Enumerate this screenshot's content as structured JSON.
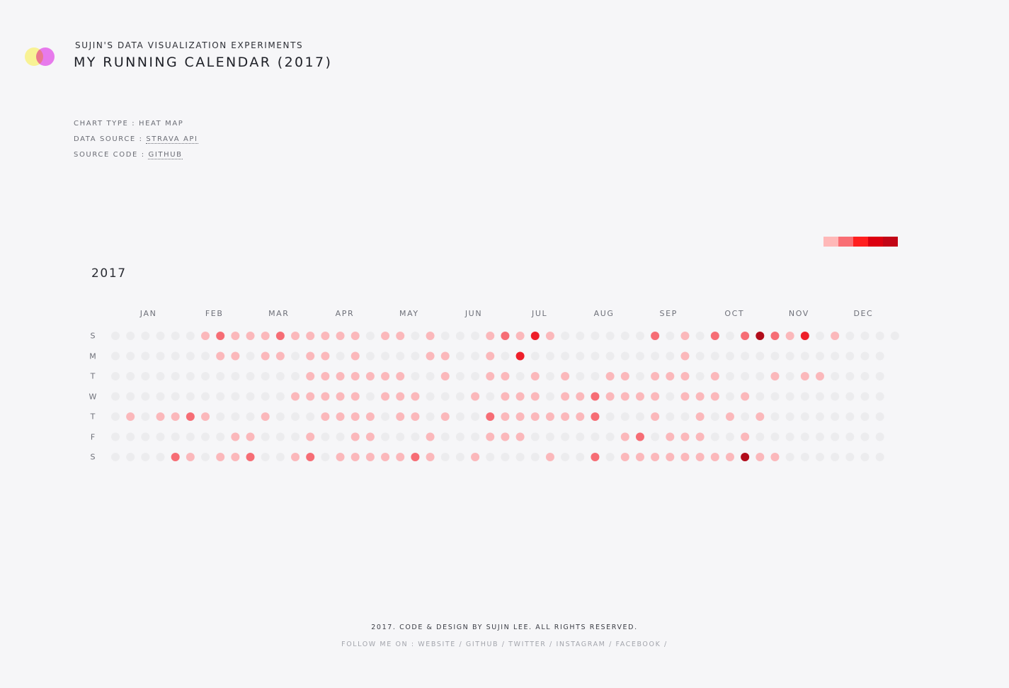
{
  "header": {
    "kicker": "SUJIN'S DATA VISUALIZATION EXPERIMENTS",
    "title": "MY RUNNING CALENDAR (2017)"
  },
  "meta": {
    "chart_type_label": "CHART TYPE : ",
    "chart_type_value": "HEAT MAP",
    "data_source_label": "DATA SOURCE : ",
    "data_source_link": "STRAVA API",
    "source_code_label": "SOURCE CODE : ",
    "source_code_link": "GITHUB"
  },
  "colors": {
    "background": "#f6f6f8",
    "logo_yellow": "#f7f18c",
    "logo_magenta": "#ee6cf2"
  },
  "chart_data": {
    "type": "heatmap",
    "title": "2017",
    "year": 2017,
    "months": [
      "JAN",
      "FEB",
      "MAR",
      "APR",
      "MAY",
      "JUN",
      "JUL",
      "AUG",
      "SEP",
      "OCT",
      "NOV",
      "DEC"
    ],
    "weekdays": [
      "S",
      "M",
      "T",
      "W",
      "T",
      "F",
      "S"
    ],
    "legend": {
      "position": "top-right",
      "colors": [
        "#ffb8b8",
        "#f96e74",
        "#ff1f1f",
        "#dc0010",
        "#c20516"
      ]
    },
    "level_colors": [
      "#ececee",
      "#fbb8bb",
      "#f66d75",
      "#ee1f2a",
      "#b10c1b"
    ],
    "levels": [
      [
        0,
        0,
        0,
        0,
        0,
        0,
        1,
        2,
        1,
        1,
        1,
        2,
        1,
        1,
        1,
        1,
        1,
        0,
        1,
        1,
        0,
        1,
        0,
        0,
        0,
        1,
        2,
        1,
        3,
        1,
        0,
        0,
        0,
        0,
        0,
        0,
        2,
        0,
        1,
        0,
        2,
        0,
        2,
        4,
        2,
        1,
        3,
        0,
        1,
        0,
        0,
        0,
        0
      ],
      [
        0,
        0,
        0,
        0,
        0,
        0,
        0,
        1,
        1,
        0,
        1,
        1,
        0,
        1,
        1,
        0,
        1,
        0,
        0,
        0,
        0,
        1,
        1,
        0,
        0,
        1,
        0,
        3,
        0,
        0,
        0,
        0,
        0,
        0,
        0,
        0,
        0,
        0,
        1,
        0,
        0,
        0,
        0,
        0,
        0,
        0,
        0,
        0,
        0,
        0,
        0,
        0,
        null
      ],
      [
        0,
        0,
        0,
        0,
        0,
        0,
        0,
        0,
        0,
        0,
        0,
        0,
        0,
        1,
        1,
        1,
        1,
        1,
        1,
        1,
        0,
        0,
        1,
        0,
        0,
        1,
        1,
        0,
        1,
        0,
        1,
        0,
        0,
        1,
        1,
        0,
        1,
        1,
        1,
        0,
        1,
        0,
        0,
        0,
        1,
        0,
        1,
        1,
        0,
        0,
        0,
        0,
        null
      ],
      [
        0,
        0,
        0,
        0,
        0,
        0,
        0,
        0,
        0,
        0,
        0,
        0,
        1,
        1,
        1,
        1,
        1,
        0,
        1,
        1,
        1,
        0,
        0,
        0,
        1,
        0,
        1,
        1,
        1,
        0,
        1,
        1,
        2,
        1,
        1,
        1,
        1,
        0,
        1,
        1,
        1,
        0,
        1,
        0,
        0,
        0,
        0,
        0,
        0,
        0,
        0,
        0,
        null
      ],
      [
        0,
        1,
        0,
        1,
        1,
        2,
        1,
        0,
        0,
        0,
        1,
        0,
        0,
        0,
        1,
        1,
        1,
        1,
        0,
        1,
        1,
        0,
        1,
        0,
        0,
        2,
        1,
        1,
        1,
        1,
        1,
        1,
        2,
        0,
        0,
        0,
        1,
        0,
        0,
        1,
        0,
        1,
        0,
        1,
        0,
        0,
        0,
        0,
        0,
        0,
        0,
        0,
        null
      ],
      [
        0,
        0,
        0,
        0,
        0,
        0,
        0,
        0,
        1,
        1,
        0,
        0,
        0,
        1,
        0,
        0,
        1,
        1,
        0,
        0,
        0,
        1,
        0,
        0,
        0,
        1,
        1,
        1,
        0,
        0,
        0,
        0,
        0,
        0,
        1,
        2,
        0,
        1,
        1,
        1,
        0,
        0,
        1,
        0,
        0,
        0,
        0,
        0,
        0,
        0,
        0,
        0,
        null
      ],
      [
        0,
        0,
        0,
        0,
        2,
        1,
        0,
        1,
        1,
        2,
        0,
        0,
        1,
        2,
        0,
        1,
        1,
        1,
        1,
        1,
        2,
        1,
        0,
        0,
        1,
        0,
        0,
        0,
        0,
        1,
        0,
        0,
        2,
        0,
        1,
        1,
        1,
        1,
        1,
        1,
        1,
        1,
        4,
        1,
        1,
        0,
        0,
        0,
        0,
        0,
        0,
        0,
        null
      ]
    ]
  },
  "footer": {
    "copyright": "2017. CODE & DESIGN BY SUJIN LEE. ALL RIGHTS RESERVED.",
    "follow_label": "FOLLOW ME ON :",
    "links": [
      "WEBSITE",
      "GITHUB",
      "TWITTER",
      "INSTAGRAM",
      "FACEBOOK"
    ],
    "separator": "/"
  }
}
